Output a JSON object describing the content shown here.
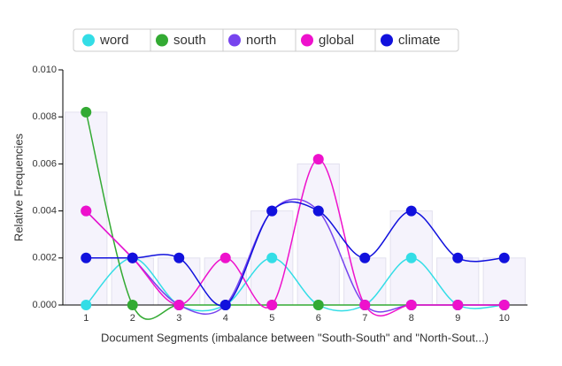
{
  "chart_data": {
    "type": "line",
    "x_label": "Document Segments (imbalance between \"South-South\" and \"North-Sout...)",
    "y_label": "Relative Frequencies",
    "categories": [
      "1",
      "2",
      "3",
      "4",
      "5",
      "6",
      "7",
      "8",
      "9",
      "10"
    ],
    "bar_values": [
      0.0082,
      0.002,
      0.002,
      0.002,
      0.004,
      0.006,
      0.002,
      0.004,
      0.002,
      0.002
    ],
    "bar_color": "#f5f3fc",
    "series": [
      {
        "name": "word",
        "color": "#33dde6",
        "values": [
          0,
          0.002,
          0,
          0,
          0.002,
          0,
          0,
          0.002,
          0,
          0
        ]
      },
      {
        "name": "south",
        "color": "#33aa33",
        "values": [
          0.0082,
          0,
          0,
          0,
          0,
          0,
          0,
          0,
          0,
          0
        ]
      },
      {
        "name": "north",
        "color": "#7744ee",
        "values": [
          0.004,
          0.002,
          0,
          0,
          0.004,
          0.004,
          0,
          0,
          0,
          0
        ]
      },
      {
        "name": "global",
        "color": "#ee11cc",
        "values": [
          0.004,
          0.002,
          0,
          0.002,
          0,
          0.0062,
          0,
          0,
          0,
          0
        ]
      },
      {
        "name": "climate",
        "color": "#1111dd",
        "values": [
          0.002,
          0.002,
          0.002,
          0,
          0.004,
          0.004,
          0.002,
          0.004,
          0.002,
          0.002
        ]
      }
    ],
    "ylim": [
      0,
      0.01
    ],
    "yticks": [
      {
        "value": 0,
        "label": "0.000"
      },
      {
        "value": 0.002,
        "label": "0.002"
      },
      {
        "value": 0.004,
        "label": "0.004"
      },
      {
        "value": 0.006,
        "label": "0.006"
      },
      {
        "value": 0.008,
        "label": "0.008"
      },
      {
        "value": 0.01,
        "label": "0.010"
      }
    ]
  }
}
